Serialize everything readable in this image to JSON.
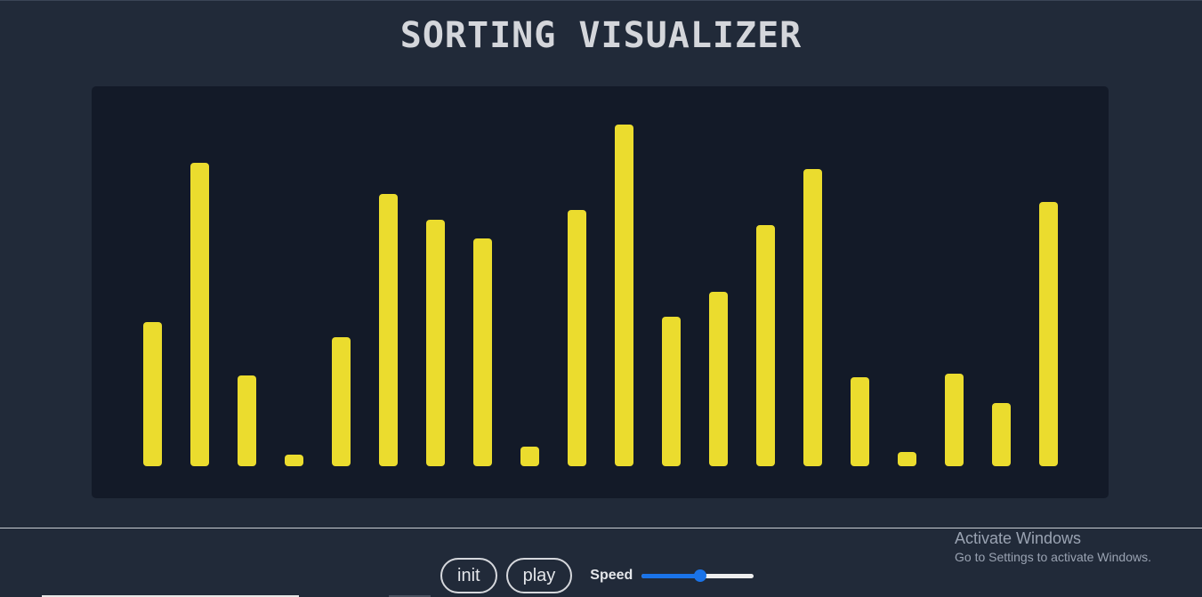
{
  "header": {
    "title": "SORTING VISUALIZER"
  },
  "chart_data": {
    "type": "bar",
    "values": [
      162,
      341,
      102,
      13,
      145,
      306,
      277,
      256,
      22,
      288,
      384,
      168,
      196,
      271,
      334,
      100,
      16,
      104,
      71,
      297
    ],
    "max_value": 384,
    "bar_color": "#ebdc2e"
  },
  "controls": {
    "init_label": "init",
    "play_label": "play",
    "speed_label": "Speed",
    "speed_value": 0.52
  },
  "watermark": {
    "title": "Activate Windows",
    "subtitle": "Go to Settings to activate Windows."
  }
}
